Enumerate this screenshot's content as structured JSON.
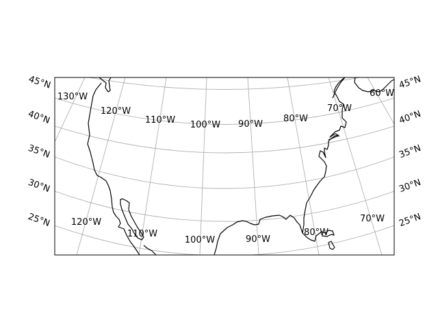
{
  "map": {
    "longitude_labels_top": [
      "130°W",
      "120°W",
      "110°W",
      "100°W",
      "90°W",
      "80°W",
      "70°W",
      "60°W"
    ],
    "longitude_labels_bottom": [
      "120°W",
      "110°W",
      "100°W",
      "90°W",
      "80°W",
      "70°W"
    ],
    "latitude_labels_left": [
      "45°N",
      "40°N",
      "35°N",
      "30°N",
      "25°N"
    ],
    "latitude_labels_right": [
      "45°N",
      "40°N",
      "35°N",
      "30°N",
      "25°N"
    ],
    "gridline_color": "#b0b0b0",
    "coastline_color": "#000000",
    "background_color": "#ffffff"
  }
}
